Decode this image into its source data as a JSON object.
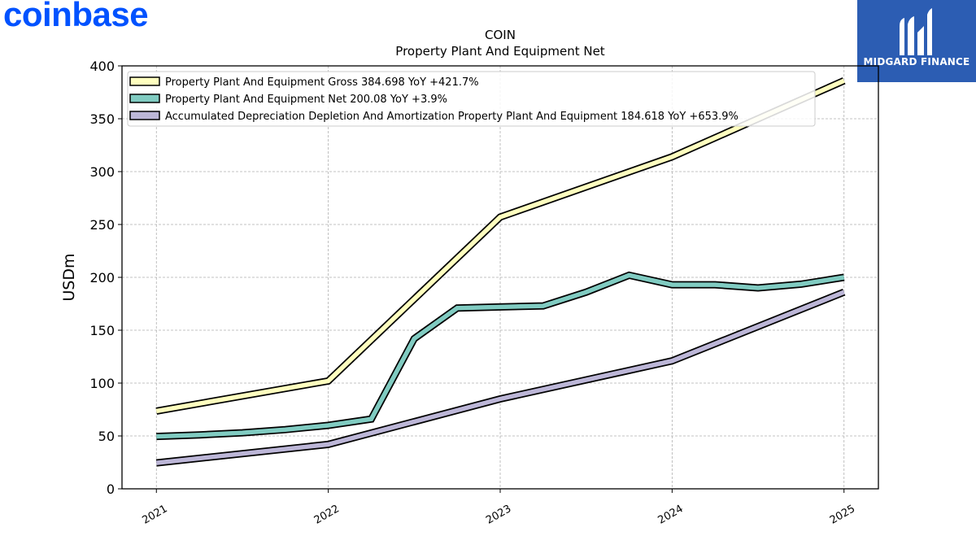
{
  "branding": {
    "logo_text": "coinbase",
    "logo_color": "#0052ff",
    "badge_text": "MIDGARD FINANCE",
    "badge_color": "#2c5db3",
    "badge_icon": "midgard-logo-icon"
  },
  "chart_data": {
    "type": "line",
    "title": "COIN",
    "subtitle": "Property Plant And Equipment Net",
    "xlabel": "",
    "ylabel": "USDm",
    "xlim": [
      2020.8,
      2025.2
    ],
    "ylim": [
      0,
      400
    ],
    "x_ticks": [
      2021,
      2022,
      2023,
      2024,
      2025
    ],
    "x_tick_labels": [
      "2021",
      "2022",
      "2023",
      "2024",
      "2025"
    ],
    "y_ticks": [
      0,
      50,
      100,
      150,
      200,
      250,
      300,
      350,
      400
    ],
    "y_tick_labels": [
      "0",
      "50",
      "100",
      "150",
      "200",
      "250",
      "300",
      "350",
      "400"
    ],
    "grid": true,
    "legend_position": "top-left",
    "series": [
      {
        "name": "Property Plant And Equipment Gross",
        "legend_label": "Property Plant And Equipment Gross  384.698 YoY +421.7%",
        "color": "#ffffbf",
        "x": [
          2021,
          2022,
          2023,
          2024,
          2025
        ],
        "y": [
          73.5,
          102,
          257,
          314,
          386
        ]
      },
      {
        "name": "Property Plant And Equipment Net",
        "legend_label": "Property Plant And Equipment Net  200.08 YoY +3.9%",
        "color": "#80cbc1",
        "x": [
          2021,
          2021.25,
          2021.5,
          2021.75,
          2022,
          2022.25,
          2022.5,
          2022.75,
          2023,
          2023.25,
          2023.5,
          2023.75,
          2024,
          2024.25,
          2024.5,
          2024.75,
          2025
        ],
        "y": [
          49.5,
          51,
          53,
          56,
          60,
          66,
          142,
          171,
          172,
          173,
          186,
          202,
          193,
          193,
          190,
          193.5,
          200
        ]
      },
      {
        "name": "Accumulated Depreciation Depletion And Amortization Property Plant And Equipment",
        "legend_label": "Accumulated Depreciation Depletion And Amortization Property Plant And Equipment  184.618 YoY +653.9%",
        "color": "#bcb6d7",
        "x": [
          2021,
          2022,
          2023,
          2024,
          2025
        ],
        "y": [
          24.5,
          42,
          85,
          121,
          186
        ]
      }
    ]
  }
}
